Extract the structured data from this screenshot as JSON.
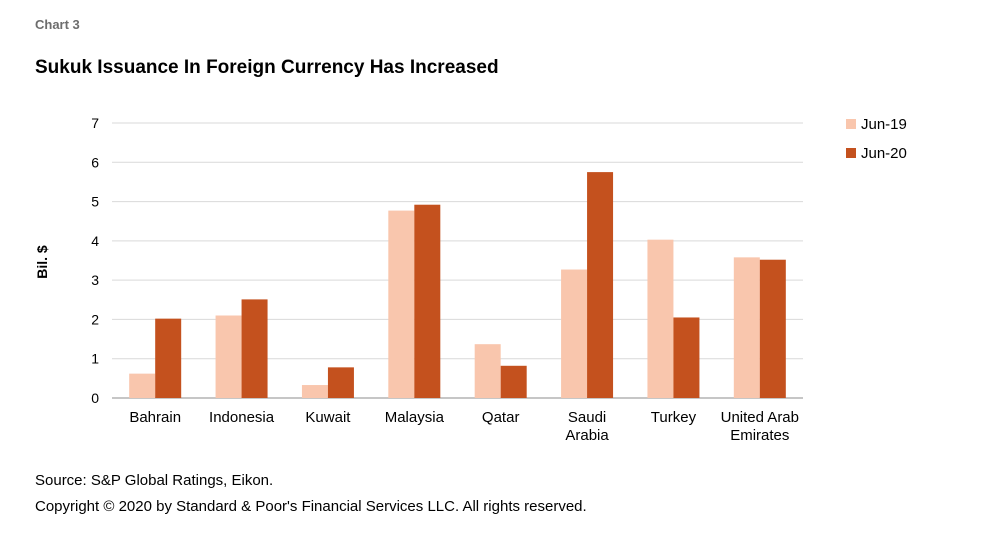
{
  "header": {
    "chart_number": "Chart 3",
    "title": "Sukuk Issuance In Foreign Currency Has Increased"
  },
  "footer": {
    "source": "Source: S&P Global Ratings, Eikon.",
    "copyright": "Copyright © 2020 by Standard & Poor's Financial Services LLC. All rights reserved."
  },
  "chart_data": {
    "type": "bar",
    "title": "Sukuk Issuance In Foreign Currency Has Increased",
    "xlabel": "",
    "ylabel": "Bil. $",
    "ylim": [
      0,
      7
    ],
    "yticks": [
      0,
      1,
      2,
      3,
      4,
      5,
      6,
      7
    ],
    "grid": true,
    "legend_position": "right",
    "categories": [
      [
        "Bahrain"
      ],
      [
        "Indonesia"
      ],
      [
        "Kuwait"
      ],
      [
        "Malaysia"
      ],
      [
        "Qatar"
      ],
      [
        "Saudi",
        "Arabia"
      ],
      [
        "Turkey"
      ],
      [
        "United Arab",
        "Emirates"
      ]
    ],
    "series": [
      {
        "name": "Jun-19",
        "color": "#f9c6ad",
        "values": [
          0.62,
          2.1,
          0.33,
          4.77,
          1.37,
          3.27,
          4.03,
          3.58
        ]
      },
      {
        "name": "Jun-20",
        "color": "#c4511e",
        "values": [
          2.02,
          2.51,
          0.78,
          4.92,
          0.82,
          5.75,
          2.05,
          3.52
        ]
      }
    ]
  }
}
